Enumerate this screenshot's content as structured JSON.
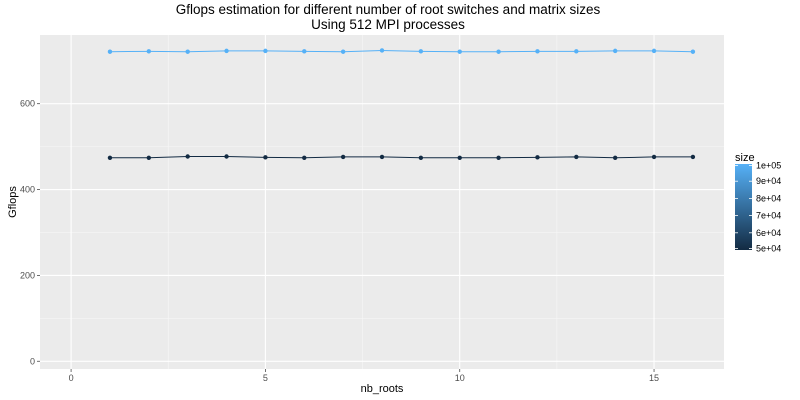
{
  "chart_data": {
    "type": "line",
    "title": "Gflops estimation for different number of root switches and matrix sizes",
    "subtitle": "Using 512 MPI processes",
    "xlabel": "nb_roots",
    "ylabel": "Gflops",
    "xlim": [
      -0.8,
      16.8
    ],
    "ylim": [
      -18,
      760
    ],
    "x_ticks": [
      0,
      5,
      10,
      15
    ],
    "y_ticks": [
      0,
      200,
      400,
      600
    ],
    "grid": true,
    "background": "#ebebeb",
    "x": [
      1,
      2,
      3,
      4,
      5,
      6,
      7,
      8,
      9,
      10,
      11,
      12,
      13,
      14,
      15,
      16
    ],
    "series": [
      {
        "size": 100000,
        "color": "#56b1f7",
        "values": [
          721,
          722,
          721,
          723,
          723,
          722,
          721,
          724,
          722,
          721,
          721,
          722,
          722,
          723,
          723,
          721
        ]
      },
      {
        "size": 50000,
        "color": "#132b43",
        "values": [
          474,
          474,
          477,
          477,
          475,
          474,
          476,
          476,
          474,
          474,
          474,
          475,
          476,
          474,
          476,
          476
        ]
      }
    ],
    "legend": {
      "title": "size",
      "placement": "right",
      "colorbar_low": "#132b43",
      "colorbar_high": "#56b1f7",
      "range": [
        50000,
        100000
      ],
      "ticks": [
        {
          "value": 100000,
          "label": "1e+05"
        },
        {
          "value": 90000,
          "label": "9e+04"
        },
        {
          "value": 80000,
          "label": "8e+04"
        },
        {
          "value": 70000,
          "label": "7e+04"
        },
        {
          "value": 60000,
          "label": "6e+04"
        },
        {
          "value": 50000,
          "label": "5e+04"
        }
      ]
    }
  }
}
